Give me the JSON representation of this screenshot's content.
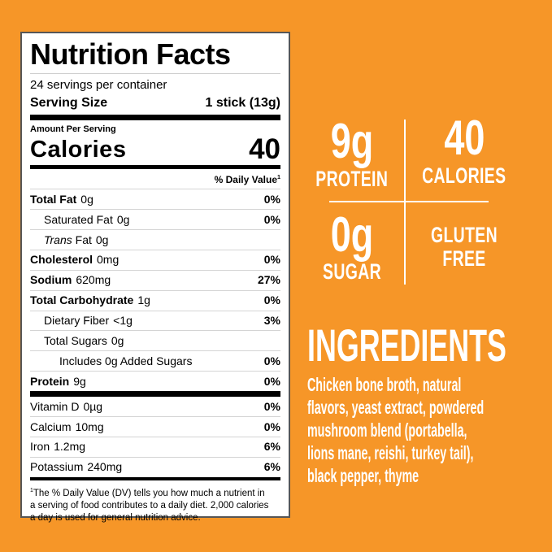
{
  "colors": {
    "background": "#F69628",
    "panel_background": "#FFFFFF",
    "panel_border": "#565656",
    "ink": "#000000",
    "highlight_text": "#FFFFFF"
  },
  "nutrition_panel": {
    "title": "Nutrition Facts",
    "servings": "24 servings per container",
    "serving_size_label": "Serving Size",
    "serving_size_value": "1 stick (13g)",
    "amount_per_serving": "Amount Per Serving",
    "calories_label": "Calories",
    "calories_value": "40",
    "daily_value_header": "% Daily Value",
    "daily_value_footnote_mark": "1",
    "main_rows": [
      {
        "name": "Total Fat",
        "amount": "0g",
        "dv": "0%",
        "indent": 0,
        "bold": true
      },
      {
        "name": "Saturated Fat",
        "amount": "0g",
        "dv": "0%",
        "indent": 1,
        "bold": false
      },
      {
        "name": "Fat",
        "italic_prefix": "Trans",
        "amount": "0g",
        "dv": "",
        "indent": 1,
        "bold": false
      },
      {
        "name": "Cholesterol",
        "amount": "0mg",
        "dv": "0%",
        "indent": 0,
        "bold": true
      },
      {
        "name": "Sodium",
        "amount": "620mg",
        "dv": "27%",
        "indent": 0,
        "bold": true
      },
      {
        "name": "Total Carbohydrate",
        "amount": "1g",
        "dv": "0%",
        "indent": 0,
        "bold": true
      },
      {
        "name": "Dietary Fiber",
        "amount": "<1g",
        "dv": "3%",
        "indent": 1,
        "bold": false
      },
      {
        "name": "Total Sugars",
        "amount": "0g",
        "dv": "",
        "indent": 1,
        "bold": false
      },
      {
        "name": "Includes 0g Added Sugars",
        "amount": "",
        "dv": "0%",
        "indent": 2,
        "bold": false
      },
      {
        "name": "Protein",
        "amount": "9g",
        "dv": "0%",
        "indent": 0,
        "bold": true
      }
    ],
    "micro_rows": [
      {
        "name": "Vitamin D",
        "amount": "0µg",
        "dv": "0%",
        "indent": 0,
        "bold": false
      },
      {
        "name": "Calcium",
        "amount": "10mg",
        "dv": "0%",
        "indent": 0,
        "bold": false
      },
      {
        "name": "Iron",
        "amount": "1.2mg",
        "dv": "6%",
        "indent": 0,
        "bold": false
      },
      {
        "name": "Potassium",
        "amount": "240mg",
        "dv": "6%",
        "indent": 0,
        "bold": false
      }
    ],
    "footnote_mark": "1",
    "footnote_lines": [
      "The % Daily Value (DV) tells you how much a nutrient in",
      "a serving of food contributes to a daily diet. 2,000 calories",
      "a day is used for general nutrition advice."
    ]
  },
  "highlights": {
    "cells": [
      {
        "value": "9g",
        "caption": "PROTEIN"
      },
      {
        "value": "40",
        "caption": "CALORIES"
      },
      {
        "value": "0g",
        "caption": "SUGAR"
      },
      {
        "value": "",
        "caption": "GLUTEN FREE"
      }
    ]
  },
  "ingredients": {
    "heading": "INGREDIENTS",
    "full_text": "Chicken bone broth, natural flavors, yeast extract, powdered mushroom blend (portabella, lions mane, reishi, turkey tail), black pepper, thyme",
    "lines": [
      "Chicken bone broth, natural",
      "flavors, yeast extract, powdered",
      "mushroom blend (portabella,",
      "lions mane, reishi, turkey tail),",
      "black pepper, thyme"
    ]
  }
}
